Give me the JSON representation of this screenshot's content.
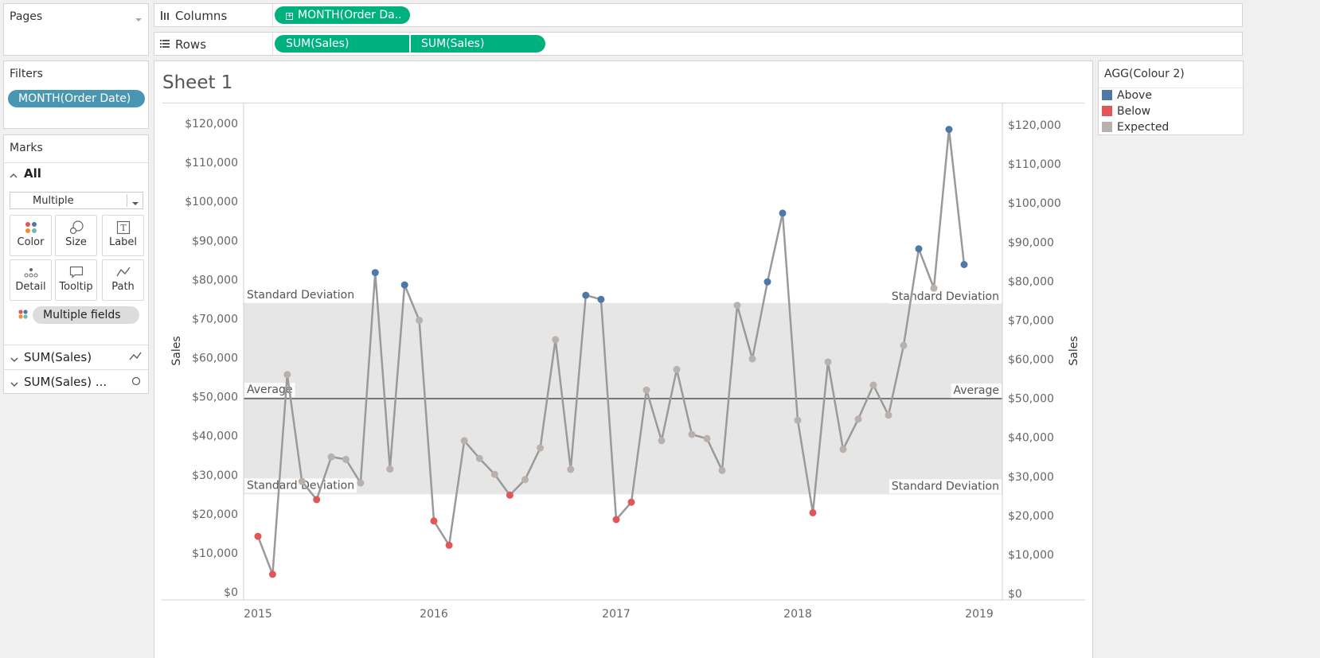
{
  "pages": {
    "title": "Pages"
  },
  "shelves": {
    "columns_label": "Columns",
    "rows_label": "Rows",
    "columns_pill": "MONTH(Order Da..",
    "rows_pill_1": "SUM(Sales)",
    "rows_pill_2": "SUM(Sales)"
  },
  "filters": {
    "title": "Filters",
    "pill": "MONTH(Order Date)"
  },
  "marks": {
    "title": "Marks",
    "all_label": "All",
    "mark_type": "Multiple",
    "buttons": {
      "color": "Color",
      "size": "Size",
      "label": "Label",
      "detail": "Detail",
      "tooltip": "Tooltip",
      "path": "Path"
    },
    "fields_pill": "Multiple fields",
    "card1": "SUM(Sales)",
    "card2": "SUM(Sales) ..."
  },
  "sheet": {
    "title": "Sheet 1"
  },
  "legend": {
    "title": "AGG(Colour 2)",
    "items": [
      {
        "label": "Above",
        "color": "#4e79a7"
      },
      {
        "label": "Below",
        "color": "#e15759"
      },
      {
        "label": "Expected",
        "color": "#bab0ac"
      }
    ]
  },
  "chart_data": {
    "type": "line",
    "ylabel_left": "Sales",
    "ylabel_right": "Sales",
    "ylim": [
      0,
      120000
    ],
    "y_ticks": [
      "$0",
      "$10,000",
      "$20,000",
      "$30,000",
      "$40,000",
      "$50,000",
      "$60,000",
      "$70,000",
      "$80,000",
      "$90,000",
      "$100,000",
      "$110,000",
      "$120,000"
    ],
    "x_ticks": [
      "2015",
      "2016",
      "2017",
      "2018",
      "2019"
    ],
    "reference": {
      "average": 49500,
      "band_lower": 25000,
      "band_upper": 74000,
      "average_label": "Average",
      "band_label": "Standard Deviation"
    },
    "series": [
      {
        "months": [
          "2015-01",
          "2015-02",
          "2015-03",
          "2015-04",
          "2015-05",
          "2015-06",
          "2015-07",
          "2015-08",
          "2015-09",
          "2015-10",
          "2015-11",
          "2015-12",
          "2016-01",
          "2016-02",
          "2016-03",
          "2016-04",
          "2016-05",
          "2016-06",
          "2016-07",
          "2016-08",
          "2016-09",
          "2016-10",
          "2016-11",
          "2016-12",
          "2017-01",
          "2017-02",
          "2017-03",
          "2017-04",
          "2017-05",
          "2017-06",
          "2017-07",
          "2017-08",
          "2017-09",
          "2017-10",
          "2017-11",
          "2017-12",
          "2018-01",
          "2018-02",
          "2018-03",
          "2018-04",
          "2018-05",
          "2018-06",
          "2018-07",
          "2018-08",
          "2018-09",
          "2018-10",
          "2018-11",
          "2018-12"
        ],
        "values": [
          14237,
          4520,
          55691,
          28295,
          23648,
          34595,
          33946,
          27909,
          81777,
          31453,
          78629,
          69546,
          18174,
          11951,
          38726,
          34195,
          30132,
          24797,
          28765,
          36898,
          64596,
          31405,
          75973,
          74919,
          18542,
          22978,
          51715,
          38750,
          56988,
          40345,
          39262,
          31115,
          73410,
          59688,
          79412,
          96999,
          43971,
          20301,
          58872,
          36522,
          44261,
          52981,
          45264,
          63121,
          87867,
          77777,
          118448,
          83829
        ],
        "status": [
          "Below",
          "Below",
          "Expected",
          "Expected",
          "Below",
          "Expected",
          "Expected",
          "Expected",
          "Above",
          "Expected",
          "Above",
          "Expected",
          "Below",
          "Below",
          "Expected",
          "Expected",
          "Expected",
          "Below",
          "Expected",
          "Expected",
          "Expected",
          "Expected",
          "Above",
          "Above",
          "Below",
          "Below",
          "Expected",
          "Expected",
          "Expected",
          "Expected",
          "Expected",
          "Expected",
          "Expected",
          "Expected",
          "Above",
          "Above",
          "Expected",
          "Below",
          "Expected",
          "Expected",
          "Expected",
          "Expected",
          "Expected",
          "Expected",
          "Above",
          "Expected",
          "Above",
          "Above"
        ]
      }
    ]
  }
}
